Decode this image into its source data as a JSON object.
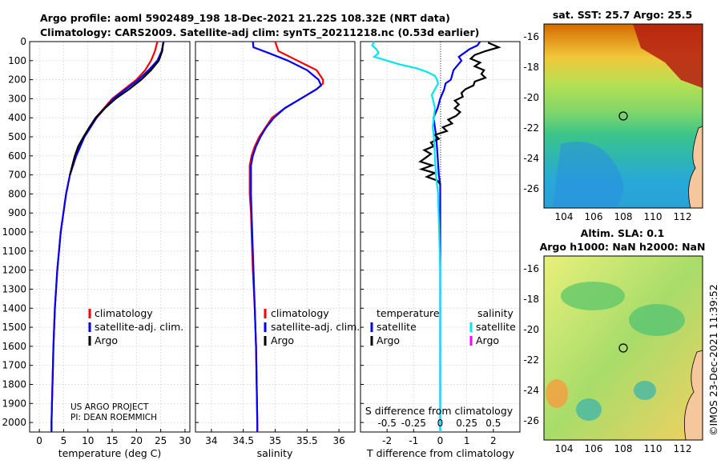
{
  "titles": {
    "line1": "Argo profile: aoml 5902489_198 18-Dec-2021 21.22S 108.32E (NRT data)",
    "line2": "Climatology: CARS2009. Satellite-adj clim: synTS_20211218.nc (0.53d earlier)",
    "sst_title": "sat. SST: 25.7 Argo: 25.5",
    "sla_title1": "Altim. SLA: 0.1",
    "sla_title2": "Argo h1000: NaN h2000: NaN"
  },
  "footer": {
    "project": "US ARGO PROJECT",
    "pi": "PI: DEAN ROEMMICH",
    "stamp": "©IMOS 23-Dec-2021 11:39:52"
  },
  "legend": {
    "climatology": "climatology",
    "satellite_adj": "satellite-adj. clim.",
    "argo": "Argo",
    "temperature": "temperature",
    "salinity": "salinity",
    "satellite": "satellite",
    "argo2": "Argo"
  },
  "colors": {
    "climatology": "#ff0000",
    "satellite_adj": "#0000ff",
    "argo": "#000000",
    "diff_sat_T": "#0000ff",
    "diff_argo_T": "#000000",
    "diff_sat_S": "#00e5ee",
    "diff_argo_S": "#ff00ff"
  },
  "chart_data": [
    {
      "type": "line",
      "name": "temperature",
      "xlabel": "temperature (deg C)",
      "ylabel": "",
      "xlim": [
        -2,
        31
      ],
      "ylim": [
        0,
        2050
      ],
      "y_reversed": true,
      "xticks": [
        0,
        5,
        10,
        15,
        20,
        25,
        30
      ],
      "yticks": [
        0,
        100,
        200,
        300,
        400,
        500,
        600,
        700,
        800,
        900,
        1000,
        1100,
        1200,
        1300,
        1400,
        1500,
        1600,
        1700,
        1800,
        1900,
        2000
      ],
      "series": [
        {
          "name": "climatology",
          "depth": [
            0,
            50,
            100,
            150,
            200,
            250,
            300,
            400,
            500,
            600,
            700,
            800,
            1000,
            1200,
            1400,
            1600,
            1800,
            2000,
            2050
          ],
          "values": [
            24.3,
            23.8,
            23.0,
            21.8,
            20.0,
            17.5,
            15.0,
            11.6,
            9.2,
            7.5,
            6.3,
            5.5,
            4.4,
            3.7,
            3.2,
            2.9,
            2.7,
            2.5,
            2.5
          ]
        },
        {
          "name": "satellite-adj. clim.",
          "depth": [
            0,
            50,
            100,
            150,
            200,
            250,
            300,
            400,
            500,
            600,
            700,
            800,
            1000,
            1200,
            1400,
            1600,
            1800,
            2000,
            2050
          ],
          "values": [
            25.6,
            25.2,
            24.3,
            22.5,
            20.4,
            17.8,
            15.2,
            11.8,
            9.3,
            7.6,
            6.3,
            5.5,
            4.4,
            3.7,
            3.2,
            2.9,
            2.7,
            2.5,
            2.5
          ]
        },
        {
          "name": "Argo",
          "depth": [
            5,
            50,
            100,
            150,
            200,
            250,
            300,
            350,
            400,
            450,
            500,
            550,
            600,
            650,
            700
          ],
          "values": [
            25.5,
            25.3,
            24.6,
            23.0,
            21.0,
            18.5,
            15.7,
            13.5,
            11.6,
            10.3,
            9.1,
            8.0,
            7.3,
            6.8,
            6.3
          ]
        }
      ]
    },
    {
      "type": "line",
      "name": "salinity",
      "xlabel": "salinity",
      "ylabel": "",
      "xlim": [
        33.75,
        36.25
      ],
      "ylim": [
        0,
        2050
      ],
      "y_reversed": true,
      "xticks": [
        34,
        34.5,
        35,
        35.5,
        36
      ],
      "series": [
        {
          "name": "climatology",
          "depth": [
            0,
            50,
            100,
            150,
            200,
            220,
            250,
            300,
            350,
            400,
            450,
            500,
            550,
            600,
            650,
            700,
            750,
            800,
            900,
            1000,
            1200,
            1400,
            1600,
            1800,
            2000,
            2050
          ],
          "values": [
            35.0,
            35.05,
            35.35,
            35.65,
            35.75,
            35.75,
            35.65,
            35.4,
            35.15,
            34.95,
            34.85,
            34.75,
            34.68,
            34.63,
            34.6,
            34.6,
            34.6,
            34.6,
            34.62,
            34.63,
            34.65,
            34.68,
            34.7,
            34.71,
            34.72,
            34.72
          ]
        },
        {
          "name": "satellite-adj. clim.",
          "depth": [
            0,
            30,
            60,
            100,
            150,
            200,
            230,
            250,
            300,
            350,
            400,
            450,
            500,
            550,
            600,
            650,
            700,
            750,
            800,
            900,
            1000,
            1200,
            1400,
            1600,
            1800,
            2000,
            2050
          ],
          "values": [
            34.65,
            34.66,
            34.9,
            35.2,
            35.5,
            35.68,
            35.72,
            35.65,
            35.4,
            35.15,
            34.98,
            34.86,
            34.77,
            34.7,
            34.65,
            34.62,
            34.62,
            34.62,
            34.62,
            34.63,
            34.64,
            34.66,
            34.68,
            34.7,
            34.71,
            34.72,
            34.72
          ]
        }
      ]
    },
    {
      "type": "line",
      "name": "difference",
      "xlabel": "T difference from climatology",
      "xlabel_top": "S difference from climatology",
      "xlim": [
        -3,
        3
      ],
      "ylim": [
        0,
        2050
      ],
      "y_reversed": true,
      "xticks": [
        -2,
        -1,
        0,
        1,
        2
      ],
      "xticks_S": [
        -0.5,
        -0.25,
        0,
        0.25,
        0.5
      ],
      "series": [
        {
          "name": "satellite T",
          "depth": [
            0,
            20,
            40,
            60,
            80,
            100,
            150,
            200,
            220,
            250,
            300,
            350,
            400,
            450,
            500,
            600,
            700,
            750,
            800,
            900,
            1000,
            1200,
            1400,
            1600,
            1800,
            2000,
            2050
          ],
          "values": [
            1.5,
            1.4,
            1.1,
            0.9,
            0.7,
            0.8,
            0.5,
            0.4,
            0.2,
            0.15,
            0.0,
            -0.1,
            -0.25,
            -0.2,
            -0.15,
            -0.1,
            -0.05,
            0.0,
            0.0,
            0.0,
            0.0,
            0.0,
            0.0,
            0.0,
            0.0,
            0.0,
            0.0
          ]
        },
        {
          "name": "Argo T",
          "depth": [
            5,
            30,
            50,
            70,
            90,
            110,
            130,
            150,
            170,
            190,
            210,
            230,
            250,
            270,
            290,
            310,
            330,
            350,
            370,
            390,
            410,
            430,
            450,
            470,
            490,
            510,
            530,
            550,
            570,
            590,
            610,
            630,
            650,
            670,
            690,
            710,
            730,
            750
          ],
          "values": [
            1.8,
            2.2,
            1.7,
            1.3,
            1.15,
            1.5,
            1.3,
            1.65,
            1.55,
            1.7,
            1.3,
            1.25,
            0.95,
            0.8,
            0.85,
            0.55,
            0.7,
            0.55,
            0.75,
            0.6,
            0.3,
            0.45,
            0.1,
            0.25,
            -0.2,
            -0.05,
            -0.35,
            -0.25,
            -0.6,
            -0.35,
            -0.55,
            -0.75,
            -0.3,
            -0.7,
            -0.2,
            -0.5,
            -0.1,
            0.0
          ]
        },
        {
          "name": "satellite S",
          "depth": [
            0,
            20,
            40,
            60,
            80,
            100,
            120,
            140,
            160,
            180,
            200,
            220,
            250,
            280,
            300,
            350,
            400,
            450,
            500,
            600,
            700,
            800,
            1000,
            1200,
            1400,
            1600,
            1800,
            2000,
            2050
          ],
          "values": [
            -0.62,
            -0.64,
            -0.6,
            -0.58,
            -0.62,
            -0.5,
            -0.38,
            -0.22,
            -0.12,
            -0.05,
            -0.03,
            -0.02,
            -0.05,
            -0.08,
            -0.07,
            -0.05,
            -0.06,
            -0.07,
            -0.06,
            -0.05,
            -0.04,
            -0.02,
            -0.01,
            0.0,
            0.0,
            0.0,
            0.0,
            0.0,
            0.0
          ]
        }
      ]
    }
  ],
  "maps": {
    "sst": {
      "xticks": [
        "104",
        "106",
        "108",
        "110",
        "112"
      ],
      "yticks": [
        "-16",
        "-18",
        "-20",
        "-22",
        "-24",
        "-26"
      ],
      "marker_lon": 108.32,
      "marker_lat": -21.22
    },
    "sla": {
      "xticks": [
        "104",
        "106",
        "108",
        "110",
        "112"
      ],
      "yticks": [
        "-16",
        "-18",
        "-20",
        "-22",
        "-24",
        "-26"
      ],
      "marker_lon": 108.32,
      "marker_lat": -21.22
    }
  }
}
